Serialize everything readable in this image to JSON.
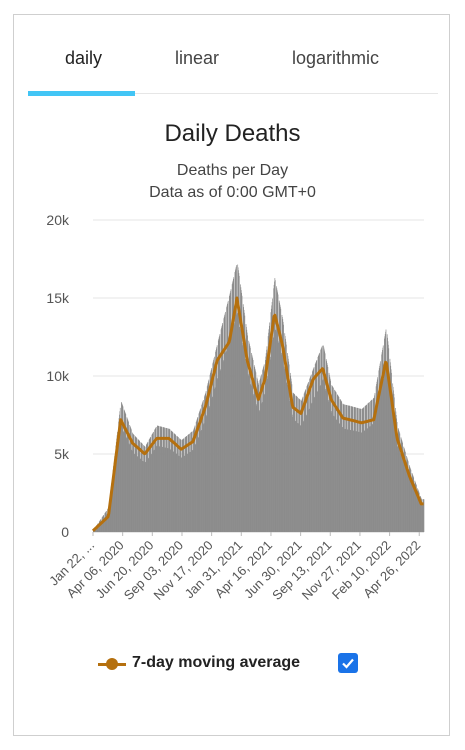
{
  "tabs": [
    {
      "label": "daily",
      "active": true
    },
    {
      "label": "linear",
      "active": false
    },
    {
      "label": "logarithmic",
      "active": false
    }
  ],
  "accent_color": "#42c5f5",
  "chart_data": {
    "type": "bar",
    "title": "Daily Deaths",
    "subtitle_lines": [
      "Deaths per Day",
      "Data as of 0:00 GMT+0"
    ],
    "ylim": [
      0,
      20000
    ],
    "y_ticks": [
      {
        "value": 0,
        "label": "0"
      },
      {
        "value": 5000,
        "label": "5k"
      },
      {
        "value": 10000,
        "label": "10k"
      },
      {
        "value": 15000,
        "label": "15k"
      },
      {
        "value": 20000,
        "label": "20k"
      }
    ],
    "x_tick_labels": [
      "Jan 22, ...",
      "Apr 06, 2020",
      "Jun 20, 2020",
      "Sep 03, 2020",
      "Nov 17, 2020",
      "Jan 31, 2021",
      "Apr 16, 2021",
      "Jun 30, 2021",
      "Sep 13, 2021",
      "Nov 27, 2021",
      "Feb 10, 2022",
      "Apr 26, 2022"
    ],
    "x_dates": [
      "2020-01-22",
      "2020-03-01",
      "2020-04-01",
      "2020-05-01",
      "2020-06-01",
      "2020-07-01",
      "2020-08-01",
      "2020-09-01",
      "2020-10-01",
      "2020-11-01",
      "2020-12-01",
      "2021-01-01",
      "2021-01-20",
      "2021-02-15",
      "2021-03-15",
      "2021-04-01",
      "2021-04-25",
      "2021-05-15",
      "2021-06-10",
      "2021-07-01",
      "2021-08-01",
      "2021-08-25",
      "2021-09-15",
      "2021-10-15",
      "2021-11-01",
      "2021-12-01",
      "2022-01-01",
      "2022-02-01",
      "2022-03-01",
      "2022-04-01",
      "2022-05-01"
    ],
    "bar_values": [
      100,
      1500,
      8000,
      6000,
      5200,
      6500,
      6300,
      5600,
      6200,
      8500,
      11500,
      14500,
      16500,
      12000,
      9000,
      10500,
      15500,
      13000,
      8500,
      8000,
      10000,
      11500,
      9000,
      7800,
      7700,
      7500,
      8200,
      12500,
      6500,
      4000,
      2000
    ],
    "series": [
      {
        "name": "7-day moving average",
        "color": "#b5700e",
        "values": [
          80,
          1000,
          7200,
          5700,
          5000,
          6000,
          6000,
          5300,
          5800,
          8000,
          11000,
          12200,
          15000,
          11000,
          8500,
          9800,
          14000,
          12000,
          8000,
          7600,
          9800,
          10500,
          8500,
          7300,
          7200,
          7000,
          7200,
          11000,
          6000,
          3600,
          1800
        ]
      }
    ],
    "bar_color": "#8c8c8c",
    "legend": {
      "position": "bottom",
      "checked": true
    }
  },
  "legend": {
    "label": "7-day moving average"
  }
}
